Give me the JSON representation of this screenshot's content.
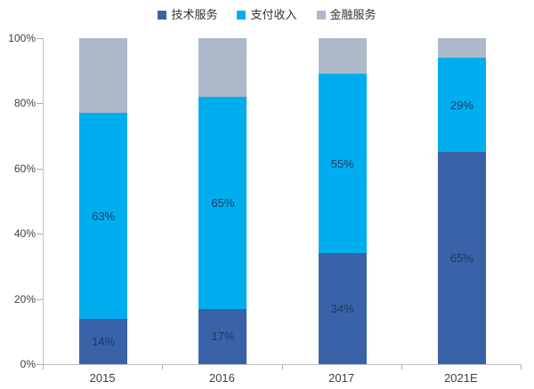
{
  "chart_data": {
    "type": "bar",
    "stacked": true,
    "percent_stacked": true,
    "title": "",
    "xlabel": "",
    "ylabel": "",
    "categories": [
      "2015",
      "2016",
      "2017",
      "2021E"
    ],
    "series": [
      {
        "name": "技术服务",
        "color": "#3A62A8",
        "values": [
          14,
          17,
          34,
          65
        ],
        "labels": [
          "14%",
          "17%",
          "34%",
          "65%"
        ],
        "show_labels": true
      },
      {
        "name": "支付收入",
        "color": "#00AEEF",
        "values": [
          63,
          65,
          55,
          29
        ],
        "labels": [
          "63%",
          "65%",
          "55%",
          "29%"
        ],
        "show_labels": true
      },
      {
        "name": "金融服务",
        "color": "#AEB9CA",
        "values": [
          23,
          18,
          11,
          6
        ],
        "labels": [],
        "show_labels": false
      }
    ],
    "yticks": [
      "0%",
      "20%",
      "40%",
      "60%",
      "80%",
      "100%"
    ],
    "ylim": [
      0,
      100
    ],
    "legend_position": "top",
    "grid": false,
    "colors": {
      "data_label": "#1C3A66",
      "axis_text": "#404040",
      "axis_line": "#C2C2C2"
    }
  }
}
